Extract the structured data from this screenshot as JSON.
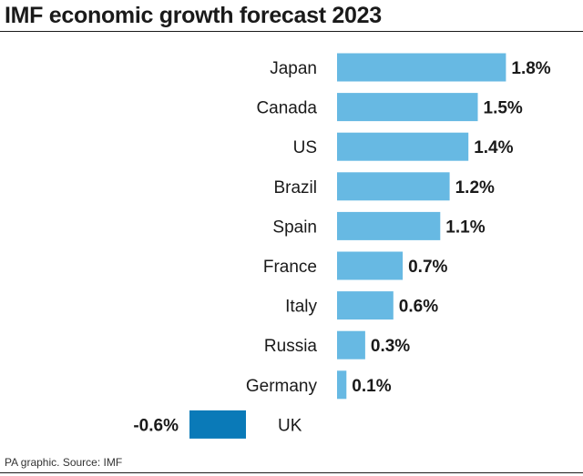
{
  "title": "IMF economic growth forecast 2023",
  "source": "PA graphic. Source: IMF",
  "colors": {
    "positive_bar": "#67b9e3",
    "negative_bar": "#0a7ab8",
    "text": "#1a1a1a"
  },
  "chart_data": {
    "type": "bar",
    "orientation": "horizontal",
    "title": "IMF economic growth forecast 2023",
    "categories": [
      "Japan",
      "Canada",
      "US",
      "Brazil",
      "Spain",
      "France",
      "Italy",
      "Russia",
      "Germany",
      "UK"
    ],
    "values": [
      1.8,
      1.5,
      1.4,
      1.2,
      1.1,
      0.7,
      0.6,
      0.3,
      0.1,
      -0.6
    ],
    "value_labels": [
      "1.8%",
      "1.5%",
      "1.4%",
      "1.2%",
      "1.1%",
      "0.7%",
      "0.6%",
      "0.3%",
      "0.1%",
      "-0.6%"
    ],
    "unit": "%",
    "grid": false,
    "legend": false
  }
}
